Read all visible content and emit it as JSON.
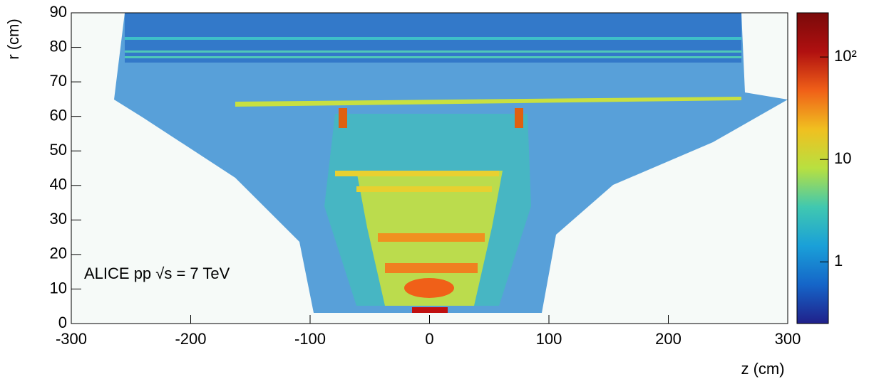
{
  "chart_data": {
    "type": "heatmap",
    "xlabel": "z (cm)",
    "ylabel": "r (cm)",
    "annotation": "ALICE  pp  √s = 7 TeV",
    "xlim": [
      -300,
      300
    ],
    "xticks": [
      -300,
      -200,
      -100,
      0,
      100,
      200,
      300
    ],
    "ylim": [
      0,
      90
    ],
    "yticks": [
      0,
      10,
      20,
      30,
      40,
      50,
      60,
      70,
      80,
      90
    ],
    "colorbar": {
      "log": true,
      "zlim": [
        0.25,
        270
      ],
      "ticks": [
        1,
        10,
        {
          "value": 100,
          "label": "10²"
        }
      ],
      "colormap": [
        "#20208a",
        "#1565c8",
        "#1aa0d8",
        "#40c8b0",
        "#b8e040",
        "#f0c020",
        "#f06018",
        "#b01010",
        "#7a0a0a"
      ]
    }
  }
}
